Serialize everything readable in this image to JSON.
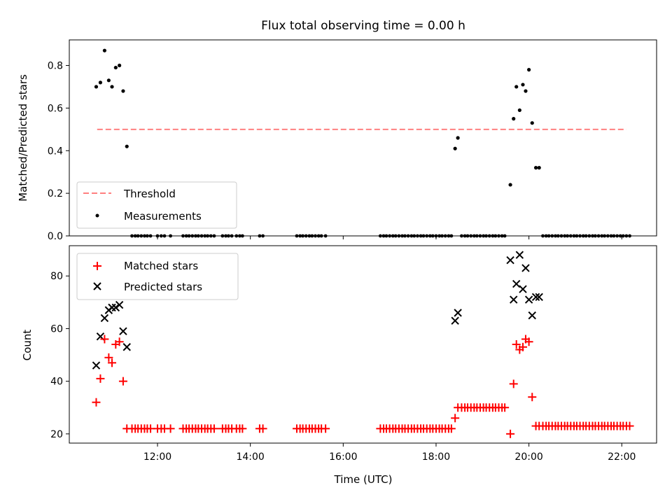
{
  "chart_data": [
    {
      "type": "scatter",
      "title": "Flux total observing time = 0.00 h",
      "xlabel": "",
      "ylabel": "Matched/Predicted stars",
      "ylim": [
        0,
        0.92
      ],
      "yticks": [
        "0.0",
        "0.2",
        "0.4",
        "0.6",
        "0.8"
      ],
      "ytick_values": [
        0,
        0.2,
        0.4,
        0.6,
        0.8
      ],
      "xlim": [
        10.1,
        22.75
      ],
      "legend_placement": "lower-left",
      "threshold": {
        "name": "Threshold",
        "value": 0.5,
        "x": [
          10.7,
          22.1
        ],
        "color": "#ff8080"
      },
      "series": [
        {
          "name": "Measurements",
          "color": "#000000",
          "x": [
            10.68,
            10.77,
            10.86,
            10.95,
            11.02,
            11.1,
            11.18,
            11.26,
            11.34,
            19.6,
            19.67,
            19.73,
            19.8,
            19.87,
            19.93,
            20.0,
            20.07,
            20.15,
            20.22,
            18.41,
            18.47
          ],
          "y": [
            0.7,
            0.72,
            0.87,
            0.73,
            0.7,
            0.79,
            0.8,
            0.68,
            0.42,
            0.24,
            0.55,
            0.7,
            0.59,
            0.71,
            0.68,
            0.78,
            0.53,
            0.32,
            0.32,
            0.41,
            0.46
          ],
          "zero_x": [
            11.45,
            11.52,
            11.58,
            11.65,
            11.72,
            11.78,
            11.85,
            12.0,
            12.08,
            12.15,
            12.28,
            12.55,
            12.62,
            12.68,
            12.75,
            12.82,
            12.88,
            12.95,
            13.02,
            13.08,
            13.15,
            13.22,
            13.4,
            13.47,
            13.53,
            13.6,
            13.7,
            13.77,
            13.83,
            14.2,
            14.27,
            15.0,
            15.07,
            15.13,
            15.2,
            15.27,
            15.33,
            15.4,
            15.47,
            15.53,
            15.62,
            16.8,
            16.87,
            16.93,
            17.0,
            17.07,
            17.13,
            17.2,
            17.27,
            17.33,
            17.4,
            17.47,
            17.53,
            17.6,
            17.67,
            17.73,
            17.8,
            17.87,
            17.93,
            18.0,
            18.07,
            18.13,
            18.2,
            18.27,
            18.33,
            18.55,
            18.62,
            18.68,
            18.75,
            18.82,
            18.88,
            18.95,
            19.02,
            19.08,
            19.15,
            19.22,
            19.28,
            19.35,
            19.42,
            19.48,
            20.3,
            20.37,
            20.43,
            20.5,
            20.57,
            20.63,
            20.7,
            20.77,
            20.83,
            20.9,
            20.97,
            21.03,
            21.1,
            21.17,
            21.23,
            21.3,
            21.37,
            21.43,
            21.5,
            21.57,
            21.63,
            21.7,
            21.77,
            21.83,
            21.9,
            21.97,
            22.03,
            22.1,
            22.17
          ]
        }
      ]
    },
    {
      "type": "scatter",
      "title": "",
      "xlabel": "Time (UTC)",
      "ylabel": "Count",
      "ylim": [
        16.5,
        91.5
      ],
      "yticks": [
        "20",
        "40",
        "60",
        "80"
      ],
      "ytick_values": [
        20,
        40,
        60,
        80
      ],
      "xlim": [
        10.1,
        22.75
      ],
      "xticks": [
        "12:00",
        "14:00",
        "16:00",
        "18:00",
        "20:00",
        "22:00"
      ],
      "xtick_values": [
        12,
        14,
        16,
        18,
        20,
        22
      ],
      "legend_placement": "upper-left",
      "series": [
        {
          "name": "Matched stars",
          "color": "#ff0000",
          "marker": "plus",
          "x": [
            10.68,
            10.77,
            10.86,
            10.95,
            11.02,
            11.1,
            11.18,
            11.26,
            11.34,
            18.41,
            18.47,
            19.6,
            19.67,
            19.73,
            19.8,
            19.87,
            19.93,
            20.0,
            20.07,
            20.15,
            20.22
          ],
          "y": [
            32,
            41,
            56,
            49,
            47,
            54,
            55,
            40,
            22,
            26,
            30,
            20,
            39,
            54,
            52,
            53,
            56,
            55,
            34,
            23,
            23
          ],
          "flat_segments": [
            {
              "value": 22,
              "x": [
                11.45,
                11.52,
                11.58,
                11.65,
                11.72,
                11.78,
                11.85,
                12.0,
                12.08,
                12.15,
                12.28,
                12.55,
                12.62,
                12.68,
                12.75,
                12.82,
                12.88,
                12.95,
                13.02,
                13.08,
                13.15,
                13.22,
                13.4,
                13.47,
                13.53,
                13.6,
                13.7,
                13.77,
                13.83,
                14.2,
                14.27,
                15.0,
                15.07,
                15.13,
                15.2,
                15.27,
                15.33,
                15.4,
                15.47,
                15.53,
                15.62,
                16.8,
                16.87,
                16.93,
                17.0,
                17.07,
                17.13,
                17.2,
                17.27,
                17.33,
                17.4,
                17.47,
                17.53,
                17.6,
                17.67,
                17.73,
                17.8,
                17.87,
                17.93,
                18.0,
                18.07,
                18.13,
                18.2,
                18.27,
                18.33
              ]
            },
            {
              "value": 30,
              "x": [
                18.55,
                18.62,
                18.68,
                18.75,
                18.82,
                18.88,
                18.95,
                19.02,
                19.08,
                19.15,
                19.22,
                19.28,
                19.35,
                19.42,
                19.48
              ]
            },
            {
              "value": 23,
              "x": [
                20.3,
                20.37,
                20.43,
                20.5,
                20.57,
                20.63,
                20.7,
                20.77,
                20.83,
                20.9,
                20.97,
                21.03,
                21.1,
                21.17,
                21.23,
                21.3,
                21.37,
                21.43,
                21.5,
                21.57,
                21.63,
                21.7,
                21.77,
                21.83,
                21.9,
                21.97,
                22.03,
                22.1,
                22.17
              ]
            }
          ]
        },
        {
          "name": "Predicted stars",
          "color": "#000000",
          "marker": "x",
          "x": [
            10.68,
            10.77,
            10.86,
            10.95,
            11.02,
            11.1,
            11.18,
            11.26,
            11.34,
            18.41,
            18.47,
            19.6,
            19.67,
            19.73,
            19.8,
            19.87,
            19.93,
            20.0,
            20.07,
            20.15,
            20.22
          ],
          "y": [
            46,
            57,
            64,
            67,
            68,
            68,
            69,
            59,
            53,
            63,
            66,
            86,
            71,
            77,
            88,
            75,
            83,
            71,
            65,
            72,
            72
          ]
        }
      ]
    }
  ]
}
